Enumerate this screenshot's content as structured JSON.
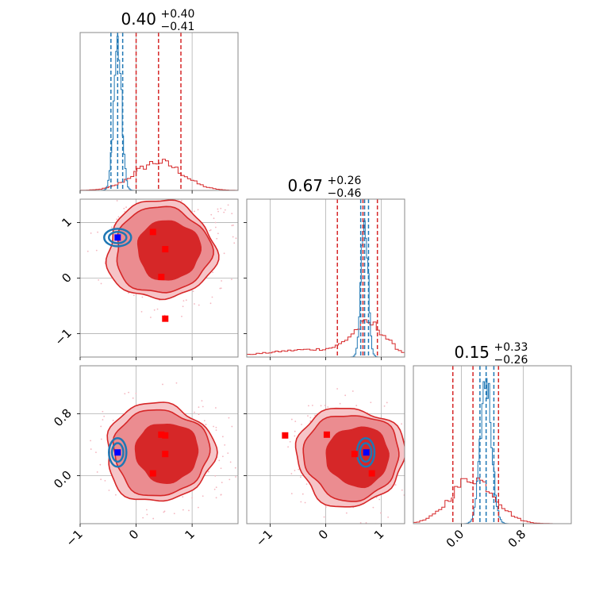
{
  "chart_data": {
    "type": "corner",
    "parameters": 3,
    "colors": {
      "red": "#d62728",
      "blue": "#1f77b4",
      "marker_red": "#ff0000",
      "marker_blue": "#0000ff"
    },
    "titles": [
      {
        "value": "0.40",
        "plus": "+0.40",
        "minus": "−0.41"
      },
      {
        "value": "0.67",
        "plus": "+0.26",
        "minus": "−0.46"
      },
      {
        "value": "0.15",
        "plus": "+0.33",
        "minus": "−0.26"
      }
    ],
    "ranges": [
      [
        -1.0,
        1.82
      ],
      [
        -1.42,
        1.42
      ],
      [
        -0.62,
        1.42
      ]
    ],
    "ticks": [
      {
        "values": [
          -1,
          0,
          1
        ],
        "labels": [
          "−1",
          "0",
          "1"
        ]
      },
      {
        "values": [
          -1,
          0,
          1
        ],
        "labels": [
          "−1",
          "0",
          "1"
        ]
      },
      {
        "values": [
          0.0,
          0.8
        ],
        "labels": [
          "0.0",
          "0.8"
        ]
      }
    ],
    "quantile_lines": {
      "red": [
        [
          0.0,
          0.4,
          0.8
        ],
        [
          0.21,
          0.67,
          0.93
        ],
        [
          -0.11,
          0.15,
          0.48
        ]
      ],
      "blue": [
        [
          -0.45,
          -0.33,
          -0.24
        ],
        [
          0.63,
          0.7,
          0.77
        ],
        [
          0.24,
          0.32,
          0.42
        ]
      ]
    },
    "histograms": {
      "red": [
        {
          "mu": 0.4,
          "sigma": 0.42,
          "peak": 0.18
        },
        {
          "mu": 0.78,
          "sigma": 0.3,
          "peak": 0.19,
          "tail_mu": -0.2,
          "tail_sigma": 0.8,
          "tail_weight": 0.25
        },
        {
          "mu": 0.15,
          "sigma": 0.28,
          "peak": 0.29
        }
      ],
      "blue": [
        {
          "mu": -0.33,
          "sigma": 0.07,
          "peak": 0.93
        },
        {
          "mu": 0.7,
          "sigma": 0.06,
          "peak": 0.93
        },
        {
          "mu": 0.32,
          "sigma": 0.07,
          "peak": 0.93
        }
      ]
    },
    "markers": {
      "panel_1_0": {
        "red": [
          [
            0.3,
            0.83
          ],
          [
            0.52,
            0.52
          ],
          [
            0.45,
            0.02
          ],
          [
            0.52,
            -0.73
          ]
        ],
        "blue": [
          [
            -0.33,
            0.73
          ]
        ]
      },
      "panel_2_0": {
        "red": [
          [
            0.45,
            0.53
          ],
          [
            0.52,
            0.52
          ],
          [
            0.52,
            0.28
          ],
          [
            0.3,
            0.03
          ]
        ],
        "blue": [
          [
            -0.33,
            0.3
          ]
        ]
      },
      "panel_2_1": {
        "red": [
          [
            -0.73,
            0.52
          ],
          [
            0.02,
            0.53
          ],
          [
            0.52,
            0.28
          ],
          [
            0.83,
            0.03
          ]
        ],
        "blue": [
          [
            0.73,
            0.3
          ]
        ]
      }
    },
    "contour_centers": {
      "panel_1_0": {
        "red": [
          0.55,
          0.5
        ],
        "blue": [
          -0.33,
          0.73
        ]
      },
      "panel_2_0": {
        "red": [
          0.52,
          0.3
        ],
        "blue": [
          -0.33,
          0.3
        ]
      },
      "panel_2_1": {
        "red": [
          0.55,
          0.25
        ],
        "blue": [
          0.72,
          0.3
        ]
      }
    }
  }
}
